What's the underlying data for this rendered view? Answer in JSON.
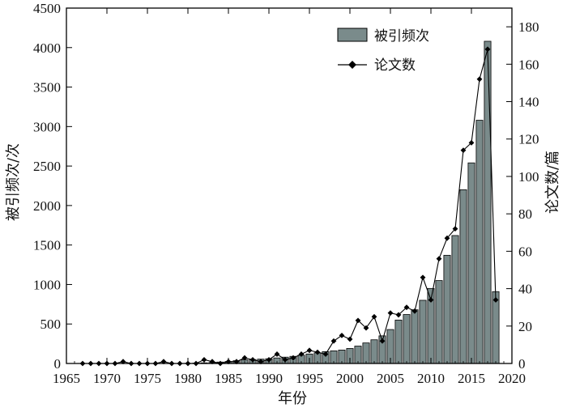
{
  "chart_data": {
    "type": "bar+line",
    "xlabel": "年份",
    "y_left_label": "被引频次/次",
    "y_right_label": "论文数/篇",
    "xlim": [
      1965,
      2020
    ],
    "ylim_left": [
      0,
      4500
    ],
    "ylim_right": [
      0,
      190
    ],
    "x_ticks": [
      1965,
      1970,
      1975,
      1980,
      1985,
      1990,
      1995,
      2000,
      2005,
      2010,
      2015,
      2020
    ],
    "y_left_ticks": [
      0,
      500,
      1000,
      1500,
      2000,
      2500,
      3000,
      3500,
      4000,
      4500
    ],
    "y_right_ticks": [
      0,
      20,
      40,
      60,
      80,
      100,
      120,
      140,
      160,
      180
    ],
    "legend_position": "top-right",
    "bar_color": "#7a8b8b",
    "line_color": "#000000",
    "grid": false,
    "series": [
      {
        "name": "被引频次",
        "type": "bar",
        "x": [
          1967,
          1968,
          1969,
          1970,
          1971,
          1972,
          1973,
          1974,
          1975,
          1976,
          1977,
          1978,
          1979,
          1980,
          1981,
          1982,
          1983,
          1984,
          1985,
          1986,
          1987,
          1988,
          1989,
          1990,
          1991,
          1992,
          1993,
          1994,
          1995,
          1996,
          1997,
          1998,
          1999,
          2000,
          2001,
          2002,
          2003,
          2004,
          2005,
          2006,
          2007,
          2008,
          2009,
          2010,
          2011,
          2012,
          2013,
          2014,
          2015,
          2016,
          2017,
          2018
        ],
        "values": [
          0,
          0,
          0,
          0,
          0,
          0,
          0,
          0,
          0,
          0,
          0,
          0,
          0,
          2,
          5,
          8,
          12,
          18,
          25,
          35,
          45,
          50,
          55,
          60,
          70,
          80,
          90,
          105,
          120,
          135,
          150,
          160,
          170,
          190,
          220,
          260,
          300,
          350,
          430,
          550,
          620,
          680,
          800,
          950,
          1050,
          1370,
          1620,
          2200,
          2540,
          3080,
          4080,
          910
        ]
      },
      {
        "name": "论文数",
        "type": "line",
        "x": [
          1967,
          1968,
          1969,
          1970,
          1971,
          1972,
          1973,
          1974,
          1975,
          1976,
          1977,
          1978,
          1979,
          1980,
          1981,
          1982,
          1983,
          1984,
          1985,
          1986,
          1987,
          1988,
          1989,
          1990,
          1991,
          1992,
          1993,
          1994,
          1995,
          1996,
          1997,
          1998,
          1999,
          2000,
          2001,
          2002,
          2003,
          2004,
          2005,
          2006,
          2007,
          2008,
          2009,
          2010,
          2011,
          2012,
          2013,
          2014,
          2015,
          2016,
          2017,
          2018
        ],
        "values": [
          0,
          0,
          0,
          0,
          0,
          1,
          0,
          0,
          0,
          0,
          1,
          0,
          0,
          0,
          0,
          2,
          1,
          0,
          1,
          1,
          3,
          2,
          1,
          2,
          5,
          2,
          3,
          5,
          7,
          6,
          5,
          12,
          15,
          13,
          23,
          19,
          25,
          12,
          27,
          26,
          30,
          28,
          46,
          34,
          56,
          67,
          72,
          114,
          118,
          152,
          168,
          34
        ]
      }
    ]
  }
}
